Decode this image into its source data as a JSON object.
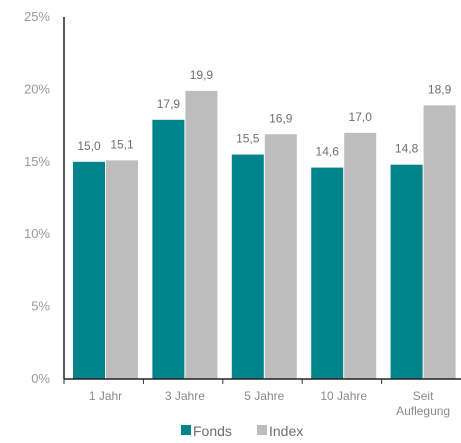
{
  "chart_data": {
    "type": "bar",
    "categories": [
      "1 Jahr",
      "3 Jahre",
      "5 Jahre",
      "10 Jahre",
      "Seit Auflegung"
    ],
    "series": [
      {
        "name": "Fonds",
        "color": "#00838a",
        "values": [
          15.0,
          17.9,
          15.5,
          14.6,
          14.8
        ],
        "labels": [
          "15,0",
          "17,9",
          "15,5",
          "14,6",
          "14,8"
        ]
      },
      {
        "name": "Index",
        "color": "#bdbdbd",
        "values": [
          15.1,
          19.9,
          16.9,
          17.0,
          18.9
        ],
        "labels": [
          "15,1",
          "19,9",
          "16,9",
          "17,0",
          "18,9"
        ]
      }
    ],
    "y_ticks": [
      {
        "value": 0,
        "label": "0%"
      },
      {
        "value": 5,
        "label": "5%"
      },
      {
        "value": 10,
        "label": "10%"
      },
      {
        "value": 15,
        "label": "15%"
      },
      {
        "value": 20,
        "label": "20%"
      },
      {
        "value": 25,
        "label": "25%"
      }
    ],
    "ylim": [
      0,
      25
    ],
    "grid": false,
    "legend_position": "bottom-center",
    "title": "",
    "xlabel": "",
    "ylabel": ""
  }
}
